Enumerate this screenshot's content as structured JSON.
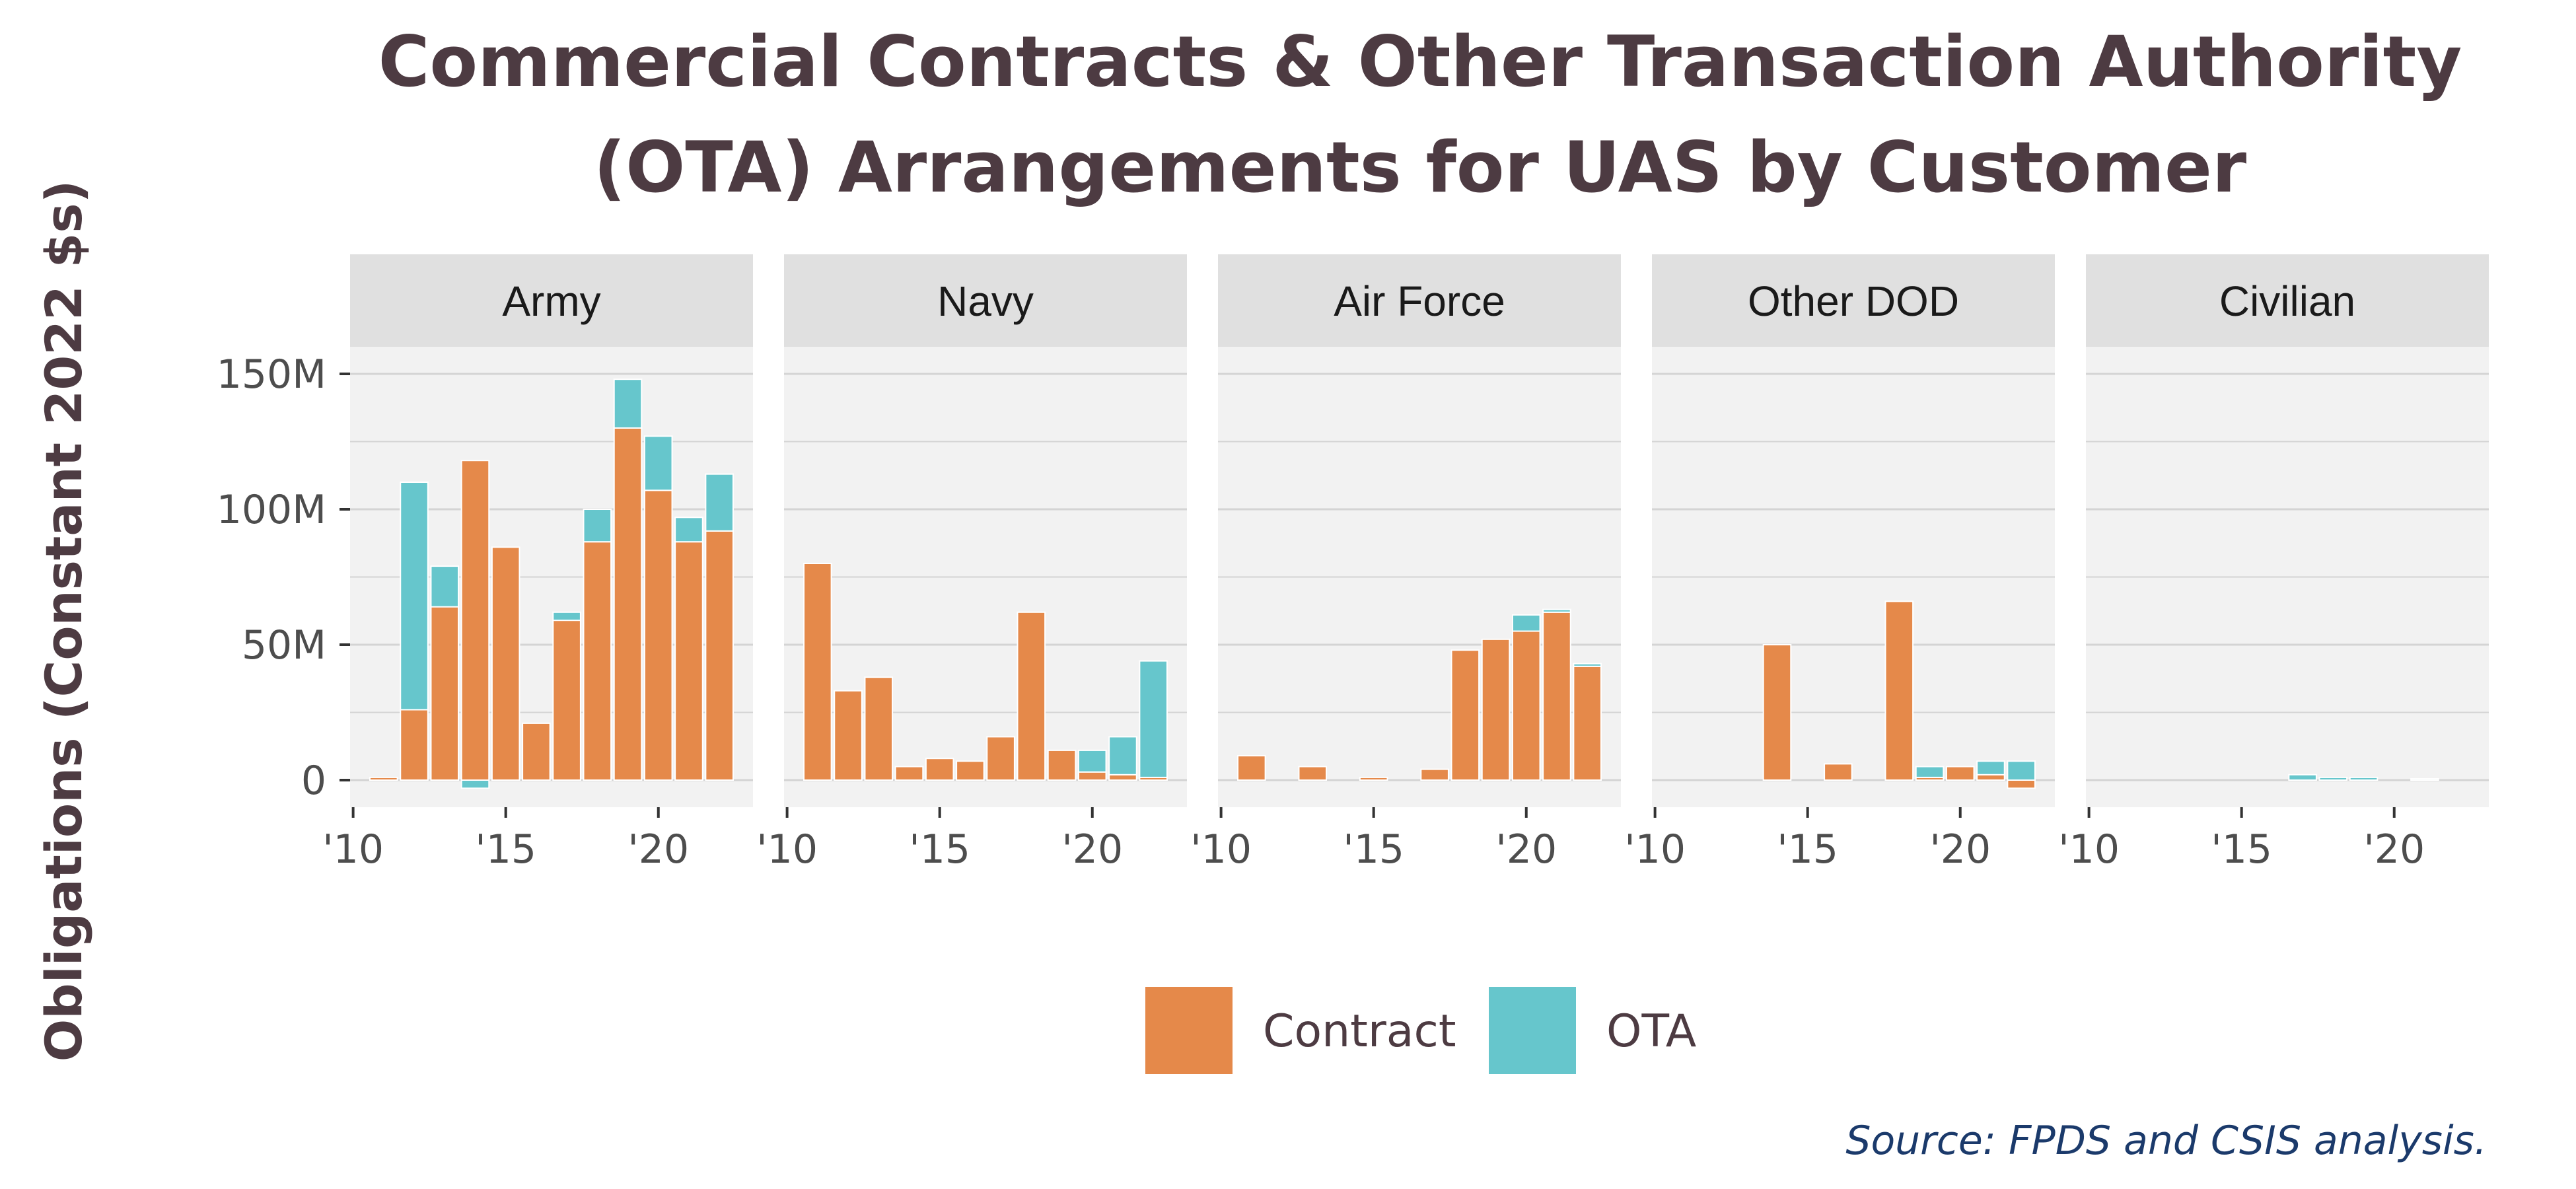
{
  "chart_data": {
    "type": "bar",
    "stacked": true,
    "title": "Commercial Contracts & Other Transaction Authority (OTA) Arrangements for UAS by Customer",
    "title_lines": [
      "Commercial Contracts & Other Transaction Authority",
      "(OTA) Arrangements for UAS by Customer"
    ],
    "ylabel": "Obligations (Constant 2022 $s)",
    "xlabel": "",
    "source": "Source: FPDS and CSIS analysis.",
    "legend": {
      "position": "bottom",
      "entries": [
        "Contract",
        "OTA"
      ]
    },
    "colors": {
      "Contract": "#e5894a",
      "OTA": "#66c6cc",
      "panel": "#f2f2f2",
      "strip": "#e0e0e0",
      "grid": "#d4d4d4"
    },
    "ylim": [
      -10,
      160
    ],
    "y_ticks": [
      0,
      50,
      100,
      150
    ],
    "y_tick_labels": [
      "0",
      "50M",
      "100M",
      "150M"
    ],
    "xlim": [
      2009.9,
      2023.1
    ],
    "x_ticks": [
      2010,
      2015,
      2020
    ],
    "x_tick_labels": [
      "'10",
      "'15",
      "'20"
    ],
    "units": "millions of constant 2022 dollars",
    "x": [
      2011,
      2012,
      2013,
      2014,
      2015,
      2016,
      2017,
      2018,
      2019,
      2020,
      2021,
      2022
    ],
    "panels": [
      {
        "name": "Army",
        "series": [
          {
            "name": "Contract",
            "values": [
              1,
              26,
              64,
              118,
              86,
              21,
              59,
              88,
              130,
              107,
              88,
              92
            ]
          },
          {
            "name": "OTA",
            "values": [
              0,
              84,
              15,
              -3,
              0,
              0,
              3,
              12,
              18,
              20,
              9,
              21
            ]
          }
        ]
      },
      {
        "name": "Navy",
        "series": [
          {
            "name": "Contract",
            "values": [
              80,
              33,
              38,
              5,
              8,
              7,
              16,
              62,
              11,
              3,
              2,
              1
            ]
          },
          {
            "name": "OTA",
            "values": [
              0,
              0,
              0,
              0,
              0,
              0,
              0,
              0,
              0,
              8,
              14,
              43
            ]
          }
        ]
      },
      {
        "name": "Air Force",
        "series": [
          {
            "name": "Contract",
            "values": [
              9,
              0,
              5,
              0,
              1,
              0,
              4,
              48,
              52,
              55,
              62,
              42
            ]
          },
          {
            "name": "OTA",
            "values": [
              0,
              0,
              0,
              0,
              0,
              0,
              0,
              0,
              0,
              6,
              1,
              1
            ]
          }
        ]
      },
      {
        "name": "Other DOD",
        "series": [
          {
            "name": "Contract",
            "values": [
              0,
              0,
              0,
              50,
              0,
              6,
              0,
              66,
              1,
              5,
              2,
              -3
            ]
          },
          {
            "name": "OTA",
            "values": [
              0,
              0,
              0,
              0,
              0,
              0,
              0,
              0,
              4,
              0,
              5,
              7
            ]
          }
        ]
      },
      {
        "name": "Civilian",
        "series": [
          {
            "name": "Contract",
            "values": [
              0,
              0,
              0,
              0,
              0,
              0,
              0,
              0,
              0,
              0,
              0,
              0
            ]
          },
          {
            "name": "OTA",
            "values": [
              0,
              0,
              0,
              0,
              0,
              0,
              2,
              1,
              1,
              0,
              0.5,
              0
            ]
          }
        ]
      }
    ]
  }
}
